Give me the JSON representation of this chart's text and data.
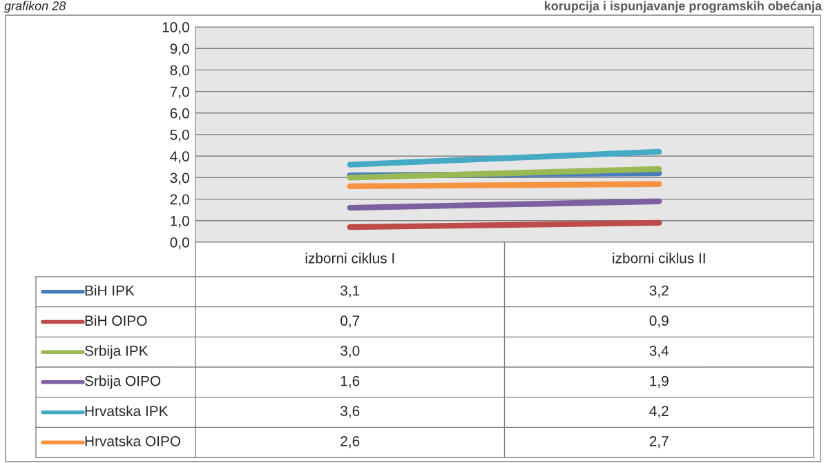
{
  "chart_data": {
    "type": "line",
    "annotations": [
      "grafikon 28",
      "korupcija i ispunjavanje programskih obećanja"
    ],
    "categories": [
      "izborni ciklus I",
      "izborni ciklus II"
    ],
    "series": [
      {
        "name": "BiH IPK",
        "color": "#4a7ebb",
        "values": [
          3.1,
          3.2
        ],
        "value_labels": [
          "3,1",
          "3,2"
        ]
      },
      {
        "name": "BiH OIPO",
        "color": "#be4b48",
        "values": [
          0.7,
          0.9
        ],
        "value_labels": [
          "0,7",
          "0,9"
        ]
      },
      {
        "name": "Srbija IPK",
        "color": "#98b954",
        "values": [
          3.0,
          3.4
        ],
        "value_labels": [
          "3,0",
          "3,4"
        ]
      },
      {
        "name": "Srbija OIPO",
        "color": "#7d60a0",
        "values": [
          1.6,
          1.9
        ],
        "value_labels": [
          "1,6",
          "1,9"
        ]
      },
      {
        "name": "Hrvatska IPK",
        "color": "#46aac5",
        "values": [
          3.6,
          4.2
        ],
        "value_labels": [
          "3,6",
          "4,2"
        ]
      },
      {
        "name": "Hrvatska OIPO",
        "color": "#f69240",
        "values": [
          2.6,
          2.7
        ],
        "value_labels": [
          "2,6",
          "2,7"
        ]
      }
    ],
    "ylim": [
      0,
      10
    ],
    "yticks": [
      {
        "value": 0,
        "label": "0,0"
      },
      {
        "value": 1,
        "label": "1,0"
      },
      {
        "value": 2,
        "label": "2,0"
      },
      {
        "value": 3,
        "label": "3,0"
      },
      {
        "value": 4,
        "label": "4,0"
      },
      {
        "value": 5,
        "label": "5,0"
      },
      {
        "value": 6,
        "label": "6,0"
      },
      {
        "value": 7,
        "label": "7,0"
      },
      {
        "value": 8,
        "label": "8,0"
      },
      {
        "value": 9,
        "label": "9,0"
      },
      {
        "value": 10,
        "label": "10,0"
      }
    ],
    "grid": "y",
    "legend": "bottom",
    "marker": "none",
    "line_style": "solid"
  }
}
